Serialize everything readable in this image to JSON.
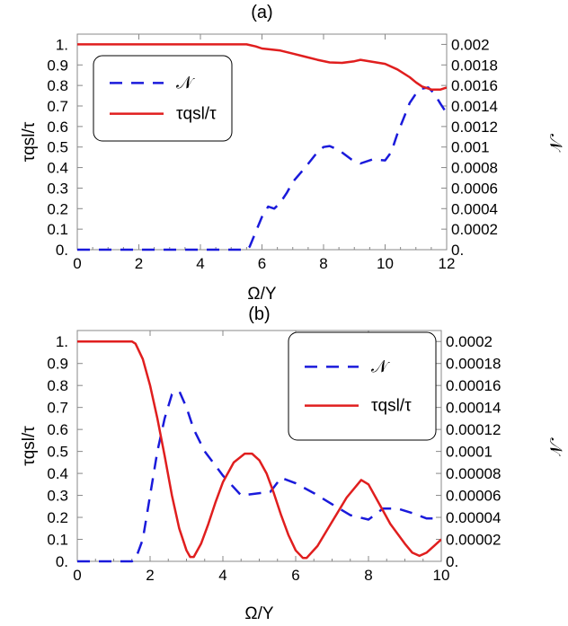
{
  "chart_data": [
    {
      "type": "line",
      "title": "(a)",
      "xlabel": "Ω/Υ",
      "ylabel": "τqsl/τ",
      "ylabel_right": "𝒩",
      "xlim": [
        0,
        12
      ],
      "ylim": [
        0,
        1.05
      ],
      "ylim_right": [
        0,
        0.0021
      ],
      "xticks": [
        "0",
        "2",
        "4",
        "6",
        "8",
        "10",
        "12"
      ],
      "yticks": [
        "0.",
        "0.1",
        "0.2",
        "0.3",
        "0.4",
        "0.5",
        "0.6",
        "0.7",
        "0.8",
        "0.9",
        "1."
      ],
      "yticks_right": [
        "0.",
        "0.0002",
        "0.0004",
        "0.0006",
        "0.0008",
        "0.001",
        "0.0012",
        "0.0014",
        "0.0016",
        "0.0018",
        "0.002"
      ],
      "legend_position": "top-left",
      "series": [
        {
          "name": "𝒩",
          "axis": "right",
          "style": "dashed",
          "color": "#1a1adb",
          "x": [
            0,
            2,
            4,
            5.5,
            5.6,
            6.0,
            6.2,
            6.4,
            6.6,
            6.8,
            7.0,
            7.4,
            7.8,
            8.0,
            8.2,
            8.5,
            8.9,
            9.2,
            9.6,
            10.0,
            10.2,
            10.4,
            10.6,
            10.8,
            11.0,
            11.2,
            11.4,
            11.6,
            11.8,
            12.0
          ],
          "y": [
            0,
            0,
            0,
            0,
            3e-05,
            0.00032,
            0.00042,
            0.0004,
            0.00046,
            0.00055,
            0.00066,
            0.0008,
            0.00095,
            0.001,
            0.00101,
            0.00097,
            0.00088,
            0.00084,
            0.00088,
            0.00087,
            0.00095,
            0.00113,
            0.00128,
            0.00143,
            0.00152,
            0.00157,
            0.00158,
            0.00152,
            0.00142,
            0.00133
          ]
        },
        {
          "name": "τqsl/τ",
          "axis": "left",
          "style": "solid",
          "color": "#e01e1e",
          "x": [
            0,
            2,
            4,
            5.5,
            5.8,
            6.0,
            6.3,
            6.6,
            7.0,
            7.4,
            7.8,
            8.2,
            8.6,
            9.0,
            9.2,
            9.6,
            10.0,
            10.4,
            10.8,
            11.0,
            11.2,
            11.5,
            11.8,
            12.0
          ],
          "y": [
            1.0,
            1.0,
            1.0,
            1.0,
            0.99,
            0.98,
            0.975,
            0.97,
            0.955,
            0.94,
            0.925,
            0.912,
            0.91,
            0.918,
            0.925,
            0.915,
            0.905,
            0.878,
            0.84,
            0.815,
            0.795,
            0.78,
            0.78,
            0.79
          ]
        }
      ]
    },
    {
      "type": "line",
      "title": "(b)",
      "xlabel": "Ω/Υ",
      "ylabel": "τqsl/τ",
      "ylabel_right": "𝒩",
      "xlim": [
        0,
        10
      ],
      "ylim": [
        0,
        1.05
      ],
      "ylim_right": [
        0,
        0.00021
      ],
      "xticks": [
        "0",
        "2",
        "4",
        "6",
        "8",
        "10"
      ],
      "yticks": [
        "0.",
        "0.1",
        "0.2",
        "0.3",
        "0.4",
        "0.5",
        "0.6",
        "0.7",
        "0.8",
        "0.9",
        "1."
      ],
      "yticks_right": [
        "0.",
        "0.00002",
        "0.00004",
        "0.00006",
        "0.00008",
        "0.0001",
        "0.00012",
        "0.00014",
        "0.00016",
        "0.00018",
        "0.0002"
      ],
      "legend_position": "top-right",
      "series": [
        {
          "name": "𝒩",
          "axis": "right",
          "style": "dashed",
          "color": "#1a1adb",
          "x": [
            0,
            1.5,
            1.6,
            1.8,
            2.0,
            2.2,
            2.4,
            2.6,
            2.8,
            3.0,
            3.2,
            3.5,
            4.0,
            4.5,
            5.0,
            5.3,
            5.6,
            6.0,
            6.5,
            7.0,
            7.5,
            8.0,
            8.4,
            8.8,
            9.2,
            9.6,
            10.0
          ],
          "y": [
            0,
            0,
            2e-06,
            2e-05,
            6e-05,
            0.0001,
            0.00013,
            0.000152,
            0.000155,
            0.00014,
            0.00012,
            0.0001,
            7.8e-05,
            6e-05,
            6.2e-05,
            6.3e-05,
            7.6e-05,
            7.1e-05,
            6.2e-05,
            5.2e-05,
            4.2e-05,
            3.8e-05,
            4.8e-05,
            4.8e-05,
            4.4e-05,
            3.9e-05,
            3.9e-05
          ]
        },
        {
          "name": "τqsl/τ",
          "axis": "left",
          "style": "solid",
          "color": "#e01e1e",
          "x": [
            0,
            1.0,
            1.5,
            1.6,
            1.8,
            2.0,
            2.2,
            2.4,
            2.6,
            2.8,
            3.0,
            3.1,
            3.2,
            3.4,
            3.6,
            3.8,
            4.0,
            4.3,
            4.6,
            4.8,
            5.0,
            5.2,
            5.4,
            5.6,
            5.8,
            6.0,
            6.2,
            6.3,
            6.6,
            7.0,
            7.4,
            7.8,
            8.0,
            8.3,
            8.6,
            9.0,
            9.2,
            9.4,
            9.6,
            9.8,
            10.0
          ],
          "y": [
            1.0,
            1.0,
            1.0,
            0.99,
            0.92,
            0.8,
            0.65,
            0.48,
            0.3,
            0.15,
            0.05,
            0.02,
            0.02,
            0.08,
            0.17,
            0.27,
            0.36,
            0.45,
            0.49,
            0.49,
            0.46,
            0.4,
            0.31,
            0.21,
            0.12,
            0.05,
            0.015,
            0.015,
            0.07,
            0.18,
            0.29,
            0.37,
            0.35,
            0.26,
            0.17,
            0.08,
            0.04,
            0.025,
            0.04,
            0.07,
            0.1
          ]
        }
      ]
    }
  ]
}
